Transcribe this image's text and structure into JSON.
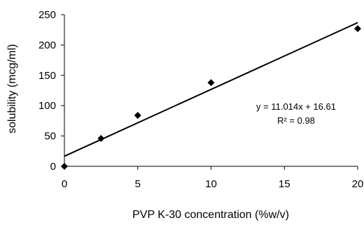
{
  "chart_data": {
    "type": "scatter",
    "xlabel": "PVP K-30 concentration (%w/v)",
    "ylabel": "solubility (mcg/ml)",
    "xlim": [
      0,
      20
    ],
    "ylim": [
      0,
      250
    ],
    "x_ticks": [
      0,
      5,
      10,
      15,
      20
    ],
    "y_ticks": [
      0,
      50,
      100,
      150,
      200,
      250
    ],
    "grid": false,
    "series": [
      {
        "marker": "diamond",
        "color": "#000000",
        "points": [
          {
            "x": 0,
            "y": 0
          },
          {
            "x": 2.5,
            "y": 46
          },
          {
            "x": 5,
            "y": 84
          },
          {
            "x": 10,
            "y": 138
          },
          {
            "x": 20,
            "y": 227
          }
        ]
      }
    ],
    "trendline": {
      "slope": 11.014,
      "intercept": 16.61,
      "x_range": [
        0,
        20
      ],
      "equation_text": "y = 11.014x + 16.61",
      "r2_text": "R² = 0.98"
    }
  }
}
